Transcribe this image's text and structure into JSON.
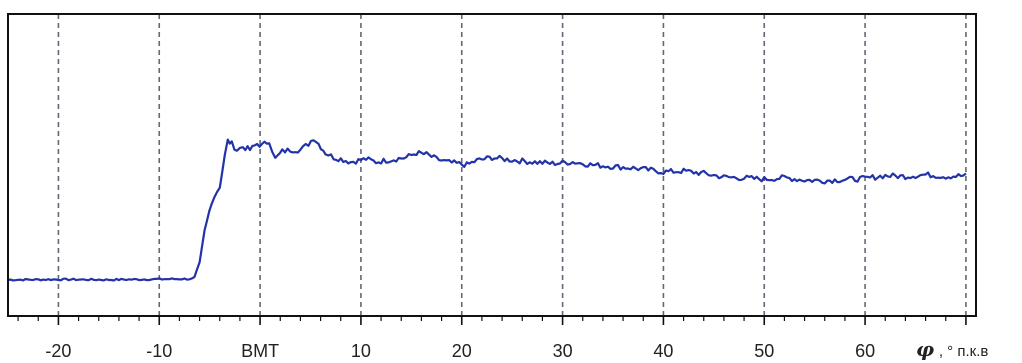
{
  "chart_data": {
    "type": "line",
    "x_tick_labels": [
      "-20",
      "-10",
      "BMT",
      "10",
      "20",
      "30",
      "40",
      "50",
      "60"
    ],
    "x_tick_values": [
      -20,
      -10,
      0,
      10,
      20,
      30,
      40,
      50,
      60
    ],
    "xlim": [
      -25,
      71
    ],
    "ylim": [
      0,
      1
    ],
    "grid": {
      "vertical": true,
      "horizontal": false,
      "style": "dashed"
    },
    "axis_label": {
      "symbol": "φ",
      "text": ", ° п.к.в"
    },
    "colors": {
      "line": "#2233aa",
      "frame": "#111111",
      "grid": "#666677",
      "background": "#ffffff"
    },
    "series": [
      {
        "points": [
          [
            -25,
            0.12
          ],
          [
            -20,
            0.121
          ],
          [
            -15,
            0.12
          ],
          [
            -10,
            0.122
          ],
          [
            -6.5,
            0.123
          ],
          [
            -6.0,
            0.17
          ],
          [
            -5.5,
            0.28
          ],
          [
            -4.8,
            0.38
          ],
          [
            -4.0,
            0.43
          ],
          [
            -3.5,
            0.53
          ],
          [
            -3.2,
            0.58
          ],
          [
            -2.8,
            0.57
          ],
          [
            -2.3,
            0.55
          ],
          [
            -1.7,
            0.56
          ],
          [
            -1.0,
            0.55
          ],
          [
            -0.3,
            0.57
          ],
          [
            0.2,
            0.565
          ],
          [
            0.9,
            0.58
          ],
          [
            1.5,
            0.52
          ],
          [
            2.2,
            0.545
          ],
          [
            3.0,
            0.55
          ],
          [
            4.0,
            0.55
          ],
          [
            4.8,
            0.57
          ],
          [
            5.3,
            0.59
          ],
          [
            5.8,
            0.57
          ],
          [
            6.5,
            0.54
          ],
          [
            7.3,
            0.525
          ],
          [
            8.0,
            0.52
          ],
          [
            9.0,
            0.51
          ],
          [
            10.5,
            0.52
          ],
          [
            11.5,
            0.51
          ],
          [
            12.5,
            0.515
          ],
          [
            13.5,
            0.52
          ],
          [
            14.5,
            0.525
          ],
          [
            15.5,
            0.54
          ],
          [
            16.5,
            0.535
          ],
          [
            17.5,
            0.52
          ],
          [
            18.5,
            0.51
          ],
          [
            19.5,
            0.505
          ],
          [
            20.5,
            0.5
          ],
          [
            21.5,
            0.515
          ],
          [
            23.0,
            0.525
          ],
          [
            24.0,
            0.52
          ],
          [
            25.5,
            0.515
          ],
          [
            27.0,
            0.51
          ],
          [
            29.0,
            0.505
          ],
          [
            31.0,
            0.51
          ],
          [
            33.0,
            0.5
          ],
          [
            35.0,
            0.495
          ],
          [
            37.0,
            0.49
          ],
          [
            39.0,
            0.482
          ],
          [
            40.0,
            0.477
          ],
          [
            42.0,
            0.48
          ],
          [
            44.0,
            0.472
          ],
          [
            46.0,
            0.46
          ],
          [
            48.0,
            0.457
          ],
          [
            50.0,
            0.453
          ],
          [
            52.0,
            0.458
          ],
          [
            54.0,
            0.45
          ],
          [
            56.0,
            0.448
          ],
          [
            58.0,
            0.452
          ],
          [
            60.0,
            0.455
          ],
          [
            62.0,
            0.465
          ],
          [
            64.0,
            0.462
          ],
          [
            66.0,
            0.468
          ],
          [
            68.0,
            0.462
          ],
          [
            70.0,
            0.465
          ]
        ]
      }
    ]
  }
}
